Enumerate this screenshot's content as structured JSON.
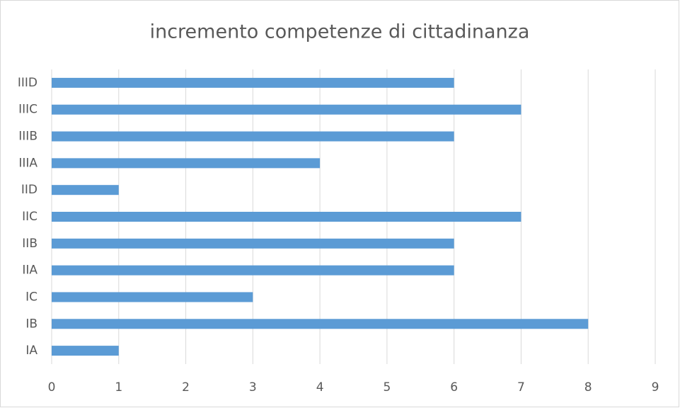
{
  "chart_data": {
    "type": "bar",
    "orientation": "horizontal",
    "title": "incremento competenze di cittadinanza",
    "categories": [
      "IA",
      "IB",
      "IC",
      "IIA",
      "IIB",
      "IIC",
      "IID",
      "IIIA",
      "IIIB",
      "IIIC",
      "IIID"
    ],
    "values": [
      1,
      8,
      3,
      6,
      6,
      7,
      1,
      4,
      6,
      7,
      6
    ],
    "color": "#5b9bd5",
    "xlim": [
      0,
      9
    ],
    "xticks": [
      0,
      1,
      2,
      3,
      4,
      5,
      6,
      7,
      8,
      9
    ],
    "grid": true
  }
}
